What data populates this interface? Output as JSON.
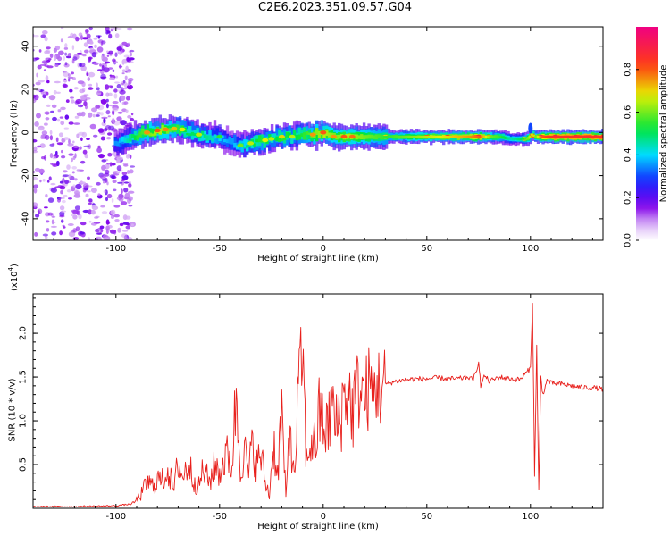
{
  "title": "C2E6.2023.351.09.57.G04",
  "colors": {
    "snr_line": "#e8201c",
    "frame": "#000000",
    "background": "#ffffff"
  },
  "chart_data": [
    {
      "type": "heatmap",
      "xlabel": "Height of straight line (km)",
      "ylabel": "Frequency (Hz)",
      "xlim": [
        -140,
        135
      ],
      "ylim": [
        -50,
        49
      ],
      "xticks": [
        -100,
        -50,
        0,
        50,
        100
      ],
      "yticks": [
        -40,
        -20,
        0,
        20,
        40
      ],
      "xtick_labels": [
        "-100",
        "-50",
        "0",
        "50",
        "100"
      ],
      "ytick_labels": [
        "-40",
        "-20",
        "0",
        "20",
        "40"
      ],
      "colorbar": {
        "label": "Normalized spectral amplitude",
        "range": [
          0,
          1
        ],
        "ticks": [
          0.0,
          0.2,
          0.4,
          0.6,
          0.8
        ],
        "tick_labels": [
          "0.0",
          "0.2",
          "0.4",
          "0.6",
          "0.8"
        ],
        "colormap": "rainbow (white-violet-blue-cyan-green-yellow-red-magenta)"
      },
      "noise_region_x": [
        -140,
        -92
      ],
      "ridge": {
        "x": [
          -100,
          -95,
          -90,
          -85,
          -80,
          -75,
          -70,
          -65,
          -60,
          -55,
          -50,
          -45,
          -40,
          -35,
          -30,
          -25,
          -20,
          -15,
          -10,
          -5,
          0,
          5,
          10,
          20,
          30,
          40,
          50,
          60,
          70,
          75,
          80,
          85,
          90,
          95,
          98,
          100,
          102,
          105,
          110,
          120,
          135
        ],
        "freq": [
          -5,
          -3,
          -1,
          0,
          1,
          1.5,
          2,
          0.5,
          -1,
          -2,
          -2,
          -5,
          -6,
          -5,
          -4,
          -3,
          -2,
          -2,
          -1,
          -1,
          0,
          -2,
          -2,
          -2,
          -2,
          -2,
          -2,
          -2,
          -2,
          -2,
          -2,
          -2,
          -3,
          -3,
          -3,
          -1,
          -2,
          -2,
          -2,
          -2,
          -2
        ],
        "amplitude": [
          0.35,
          0.45,
          0.55,
          0.6,
          0.65,
          0.6,
          0.55,
          0.5,
          0.5,
          0.45,
          0.4,
          0.35,
          0.45,
          0.5,
          0.55,
          0.5,
          0.55,
          0.5,
          0.55,
          0.6,
          0.65,
          0.6,
          0.65,
          0.6,
          0.55,
          0.6,
          0.65,
          0.7,
          0.75,
          0.8,
          0.6,
          0.55,
          0.45,
          0.5,
          0.6,
          0.7,
          0.6,
          0.8,
          0.85,
          0.85,
          0.85
        ]
      }
    },
    {
      "type": "line",
      "xlabel": "Height of straight line (km)",
      "ylabel": "SNR (10 * v/v)",
      "yscale_label": "(x10",
      "yscale_exponent": "4",
      "yscale_close": ")",
      "xlim": [
        -140,
        135
      ],
      "ylim": [
        0,
        2.45
      ],
      "xticks": [
        -100,
        -50,
        0,
        50,
        100
      ],
      "yticks": [
        0.5,
        1.0,
        1.5,
        2.0
      ],
      "xtick_labels": [
        "-100",
        "-50",
        "0",
        "50",
        "100"
      ],
      "ytick_labels": [
        "0.5",
        "1.0",
        "1.5",
        "2.0"
      ],
      "series": [
        {
          "x": [
            -140,
            -120,
            -100,
            -92,
            -88,
            -85,
            -82,
            -80,
            -78,
            -75,
            -72,
            -70,
            -68,
            -65,
            -62,
            -60,
            -58,
            -55,
            -52,
            -50,
            -48,
            -46,
            -44,
            -42,
            -40,
            -38,
            -36,
            -34,
            -32,
            -30,
            -28,
            -26,
            -24,
            -22,
            -20,
            -18,
            -16,
            -14,
            -12,
            -10,
            -8,
            -6,
            -4,
            -2,
            0,
            2,
            4,
            6,
            8,
            10,
            12,
            14,
            16,
            18,
            20,
            22,
            24,
            26,
            28,
            30,
            35,
            40,
            45,
            50,
            55,
            60,
            65,
            70,
            72,
            74,
            75,
            76,
            78,
            80,
            85,
            90,
            95,
            98,
            100,
            101,
            102,
            103,
            104,
            105,
            106,
            108,
            110,
            115,
            120,
            125,
            130,
            135
          ],
          "values": [
            0.02,
            0.02,
            0.03,
            0.05,
            0.15,
            0.3,
            0.25,
            0.35,
            0.3,
            0.45,
            0.2,
            0.55,
            0.35,
            0.5,
            0.3,
            0.25,
            0.45,
            0.3,
            0.5,
            0.4,
            0.55,
            0.6,
            0.5,
            1.3,
            0.5,
            0.65,
            0.4,
            0.75,
            0.5,
            0.6,
            0.3,
            0.15,
            0.75,
            0.4,
            1.1,
            0.1,
            1.0,
            0.3,
            1.35,
            1.75,
            0.5,
            0.8,
            0.7,
            1.05,
            1.0,
            0.85,
            1.25,
            0.9,
            1.05,
            1.25,
            1.35,
            1.1,
            1.3,
            1.4,
            1.25,
            1.38,
            1.32,
            1.42,
            1.36,
            1.42,
            1.45,
            1.47,
            1.48,
            1.48,
            1.49,
            1.48,
            1.48,
            1.5,
            1.47,
            1.55,
            1.7,
            1.4,
            1.52,
            1.45,
            1.5,
            1.48,
            1.47,
            1.55,
            1.6,
            2.35,
            0.35,
            1.85,
            0.2,
            1.5,
            1.3,
            1.46,
            1.43,
            1.42,
            1.4,
            1.38,
            1.38,
            1.36
          ]
        }
      ]
    }
  ]
}
